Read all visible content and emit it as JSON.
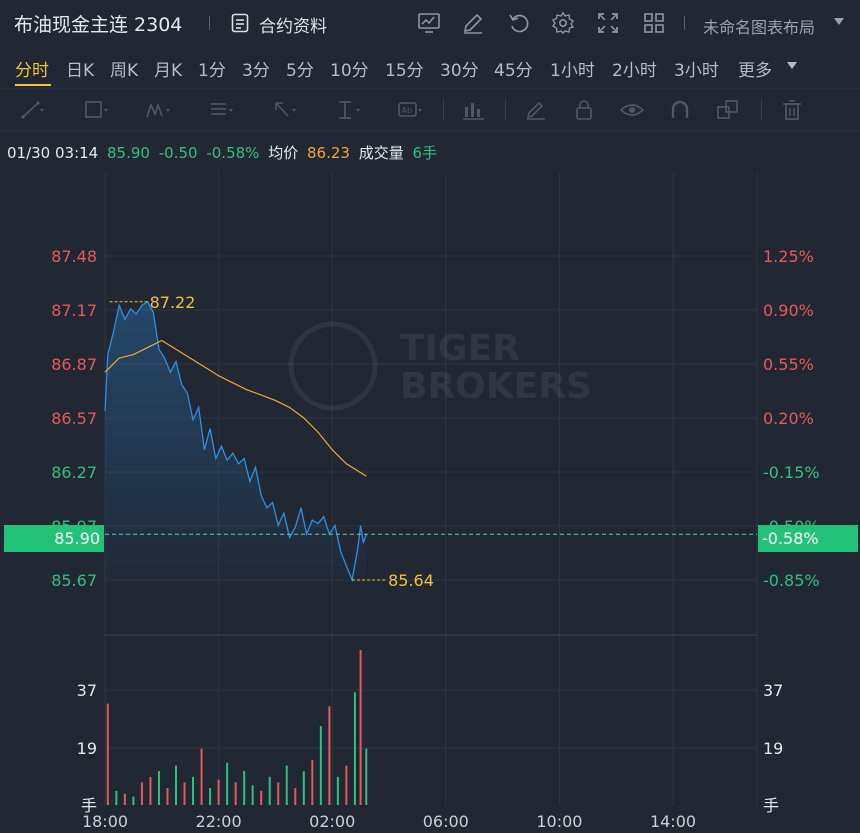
{
  "header": {
    "title": "布油现金主连 2304",
    "doc_label": "合约资料",
    "layout_label": "未命名图表布局"
  },
  "periods": [
    "分时",
    "日K",
    "周K",
    "月K",
    "1分",
    "3分",
    "5分",
    "10分",
    "15分",
    "30分",
    "45分",
    "1小时",
    "2小时",
    "3小时",
    "更多"
  ],
  "active_period": "分时",
  "quote": {
    "datetime": "01/30 03:14",
    "price": "85.90",
    "change": "-0.50",
    "change_pct": "-0.58%",
    "avg_label": "均价",
    "avg_value": "86.23",
    "volume_label": "成交量",
    "volume_value": "6手"
  },
  "watermark": {
    "line1": "TIGER",
    "line2": "BROKERS"
  },
  "colors": {
    "background": "#212733",
    "price_line": "#2e8fe0",
    "avg_line": "#f0a53a",
    "up": "#e35a5a",
    "down": "#2fc07d",
    "highlight": "#f0c330",
    "current_price_box": "#23c27b"
  },
  "chart_data": {
    "type": "line",
    "x_axis_ticks": [
      "18:00",
      "22:00",
      "02:00",
      "06:00",
      "10:00",
      "14:00"
    ],
    "price_axis": {
      "left_labels": [
        "87.48",
        "87.17",
        "86.87",
        "86.57",
        "86.27",
        "85.97",
        "85.67"
      ],
      "right_labels": [
        "1.25%",
        "0.90%",
        "0.55%",
        "0.20%",
        "-0.15%",
        "-0.50%",
        "-0.85%"
      ],
      "ylim": [
        85.64,
        87.48
      ]
    },
    "volume_axis": {
      "labels": [
        "37",
        "19",
        "手"
      ],
      "ylim": [
        0,
        55
      ]
    },
    "current_price": "85.90",
    "current_pct": "-0.58%",
    "high": "87.22",
    "low": "85.64",
    "series": [
      {
        "name": "价格",
        "x": [
          18.0,
          18.1,
          18.3,
          18.5,
          18.7,
          18.9,
          19.1,
          19.3,
          19.5,
          19.7,
          19.9,
          20.1,
          20.3,
          20.5,
          20.7,
          20.9,
          21.1,
          21.3,
          21.5,
          21.7,
          21.9,
          22.1,
          22.3,
          22.5,
          22.7,
          22.9,
          23.1,
          23.3,
          23.5,
          23.7,
          23.9,
          24.1,
          24.3,
          24.5,
          24.7,
          24.9,
          25.1,
          25.3,
          25.5,
          25.7,
          25.9,
          26.1,
          26.3,
          26.5,
          26.7,
          26.9,
          27.0,
          27.1,
          27.2
        ],
        "values": [
          86.6,
          86.92,
          87.05,
          87.2,
          87.12,
          87.18,
          87.15,
          87.2,
          87.22,
          87.16,
          86.95,
          86.9,
          86.82,
          86.88,
          86.75,
          86.7,
          86.55,
          86.62,
          86.38,
          86.5,
          86.33,
          86.4,
          86.32,
          86.36,
          86.3,
          86.33,
          86.2,
          86.28,
          86.12,
          86.05,
          86.08,
          85.95,
          86.02,
          85.88,
          85.94,
          86.05,
          85.9,
          85.98,
          85.96,
          86.0,
          85.9,
          85.95,
          85.8,
          85.72,
          85.64,
          85.82,
          85.95,
          85.85,
          85.9
        ]
      },
      {
        "name": "均价",
        "x": [
          18.0,
          18.5,
          19.0,
          19.5,
          20.0,
          20.5,
          21.0,
          21.5,
          22.0,
          22.5,
          23.0,
          23.5,
          24.0,
          24.5,
          25.0,
          25.5,
          26.0,
          26.5,
          27.0,
          27.2
        ],
        "values": [
          86.82,
          86.9,
          86.92,
          86.96,
          87.0,
          86.95,
          86.9,
          86.85,
          86.8,
          86.76,
          86.72,
          86.69,
          86.66,
          86.62,
          86.56,
          86.48,
          86.38,
          86.3,
          86.25,
          86.23
        ]
      }
    ],
    "volume": {
      "x": [
        18.1,
        18.4,
        18.7,
        19.0,
        19.3,
        19.6,
        19.9,
        20.2,
        20.5,
        20.8,
        21.1,
        21.4,
        21.7,
        22.0,
        22.3,
        22.6,
        22.9,
        23.2,
        23.5,
        23.8,
        24.1,
        24.4,
        24.7,
        25.0,
        25.3,
        25.6,
        25.9,
        26.2,
        26.5,
        26.8,
        27.0,
        27.2
      ],
      "values": [
        36,
        5,
        4,
        3,
        8,
        10,
        12,
        6,
        14,
        8,
        10,
        20,
        6,
        9,
        15,
        8,
        12,
        7,
        5,
        10,
        8,
        14,
        6,
        12,
        16,
        28,
        35,
        10,
        14,
        40,
        55,
        20
      ],
      "up": [
        true,
        false,
        true,
        false,
        true,
        true,
        false,
        true,
        false,
        true,
        false,
        true,
        false,
        true,
        false,
        true,
        false,
        false,
        true,
        false,
        true,
        false,
        true,
        false,
        true,
        false,
        true,
        false,
        true,
        false,
        true,
        false
      ]
    }
  }
}
